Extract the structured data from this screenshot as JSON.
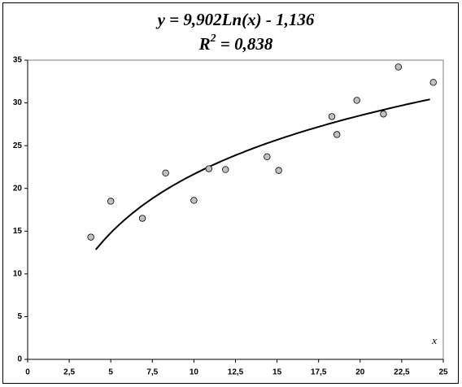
{
  "chart_data": {
    "type": "scatter",
    "title_line1": "y = 9,902Ln(x) - 1,136",
    "title_line2": {
      "base": "R",
      "sup": "2",
      "rest": " = 0,838"
    },
    "x_label": "x",
    "x": [
      3.8,
      5.0,
      6.9,
      8.3,
      10.0,
      10.9,
      11.9,
      14.4,
      15.1,
      18.3,
      18.6,
      19.8,
      21.4,
      22.3,
      24.4
    ],
    "values": [
      14.3,
      18.5,
      16.5,
      21.8,
      18.6,
      22.3,
      22.2,
      23.7,
      22.1,
      28.4,
      26.3,
      30.3,
      28.7,
      34.2,
      32.4
    ],
    "color": "#c0c0c0",
    "trend": {
      "type": "log",
      "coef": 9.902,
      "intercept": -1.136,
      "xmin": 4.1,
      "xmax": 24.2
    },
    "xlim": [
      0,
      25
    ],
    "xticks": [
      0,
      {
        "value": 2.5,
        "label": "2,5"
      },
      5,
      {
        "value": 7.5,
        "label": "7,5"
      },
      10,
      {
        "value": 12.5,
        "label": "12,5"
      },
      15,
      {
        "value": 17.5,
        "label": "17,5"
      },
      20,
      {
        "value": 22.5,
        "label": "22,5"
      },
      25
    ],
    "ylim": [
      0,
      35
    ],
    "yticks": [
      0,
      5,
      10,
      15,
      20,
      25,
      30,
      35
    ]
  }
}
